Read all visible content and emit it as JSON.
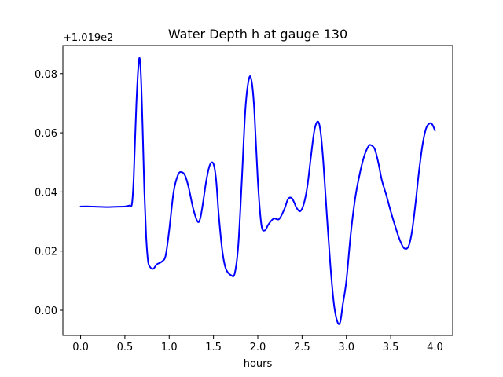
{
  "chart_data": {
    "type": "line",
    "title": "Water Depth h at gauge 130",
    "xlabel": "hours",
    "ylabel": "",
    "offset_text": "+1.019e2",
    "y_offset": 101.9,
    "xlim": [
      -0.2,
      4.2
    ],
    "ylim": [
      -0.0085,
      0.0895
    ],
    "x_ticks": [
      0.0,
      0.5,
      1.0,
      1.5,
      2.0,
      2.5,
      3.0,
      3.5,
      4.0
    ],
    "x_tick_labels": [
      "0.0",
      "0.5",
      "1.0",
      "1.5",
      "2.0",
      "2.5",
      "3.0",
      "3.5",
      "4.0"
    ],
    "y_ticks": [
      0.0,
      0.02,
      0.04,
      0.06,
      0.08
    ],
    "y_tick_labels": [
      "0.00",
      "0.02",
      "0.04",
      "0.06",
      "0.08"
    ],
    "grid": false,
    "series": [
      {
        "color": "#0000ff",
        "x": [
          0.0,
          0.1,
          0.2,
          0.3,
          0.4,
          0.5,
          0.55,
          0.58,
          0.6,
          0.63,
          0.66,
          0.68,
          0.7,
          0.72,
          0.74,
          0.76,
          0.78,
          0.82,
          0.86,
          0.92,
          0.96,
          1.0,
          1.05,
          1.1,
          1.14,
          1.18,
          1.22,
          1.27,
          1.32,
          1.35,
          1.38,
          1.42,
          1.46,
          1.5,
          1.53,
          1.56,
          1.6,
          1.64,
          1.7,
          1.74,
          1.78,
          1.82,
          1.86,
          1.9,
          1.93,
          1.96,
          2.0,
          2.04,
          2.08,
          2.12,
          2.18,
          2.24,
          2.3,
          2.34,
          2.38,
          2.41,
          2.44,
          2.48,
          2.52,
          2.56,
          2.6,
          2.64,
          2.68,
          2.71,
          2.74,
          2.78,
          2.82,
          2.86,
          2.9,
          2.93,
          2.96,
          3.0,
          3.05,
          3.1,
          3.15,
          3.2,
          3.25,
          3.28,
          3.32,
          3.36,
          3.4,
          3.45,
          3.5,
          3.55,
          3.6,
          3.65,
          3.7,
          3.74,
          3.78,
          3.82,
          3.86,
          3.9,
          3.94,
          3.97,
          4.0
        ],
        "y": [
          0.0351,
          0.0351,
          0.035,
          0.0349,
          0.035,
          0.0351,
          0.0354,
          0.036,
          0.045,
          0.07,
          0.0848,
          0.08,
          0.062,
          0.04,
          0.025,
          0.017,
          0.0148,
          0.014,
          0.0155,
          0.0165,
          0.0185,
          0.027,
          0.04,
          0.0458,
          0.0467,
          0.0455,
          0.0415,
          0.0345,
          0.03,
          0.031,
          0.036,
          0.044,
          0.0492,
          0.0495,
          0.044,
          0.032,
          0.02,
          0.014,
          0.0118,
          0.0125,
          0.022,
          0.044,
          0.068,
          0.0782,
          0.0775,
          0.068,
          0.044,
          0.029,
          0.027,
          0.029,
          0.031,
          0.0308,
          0.0342,
          0.0375,
          0.038,
          0.0365,
          0.0345,
          0.0335,
          0.036,
          0.042,
          0.052,
          0.061,
          0.0638,
          0.06,
          0.05,
          0.032,
          0.015,
          0.002,
          -0.004,
          -0.004,
          0.002,
          0.01,
          0.026,
          0.038,
          0.046,
          0.052,
          0.0555,
          0.0558,
          0.0545,
          0.05,
          0.044,
          0.039,
          0.0335,
          0.0285,
          0.024,
          0.021,
          0.0215,
          0.0265,
          0.036,
          0.047,
          0.056,
          0.0615,
          0.0632,
          0.0628,
          0.0608
        ]
      }
    ]
  }
}
